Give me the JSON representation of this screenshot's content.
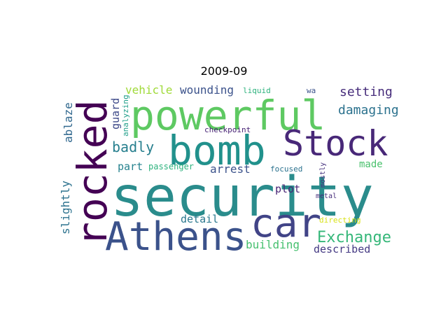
{
  "title": "2009-09",
  "words": [
    {
      "text": "security",
      "color": "#2a8c8c",
      "rotate": false
    },
    {
      "text": "powerful",
      "color": "#5ec962",
      "rotate": false
    },
    {
      "text": "bomb",
      "color": "#21918c",
      "rotate": false
    },
    {
      "text": "rocked",
      "color": "#440154",
      "rotate": true
    },
    {
      "text": "Athens",
      "color": "#3b528b",
      "rotate": false
    },
    {
      "text": "car",
      "color": "#414487",
      "rotate": false
    },
    {
      "text": "Stock",
      "color": "#482878",
      "rotate": false
    },
    {
      "text": "Exchange",
      "color": "#35b779",
      "rotate": false
    },
    {
      "text": "damaging",
      "color": "#2c728e",
      "rotate": false
    },
    {
      "text": "setting",
      "color": "#472d7b",
      "rotate": false
    },
    {
      "text": "badly",
      "color": "#277f8e",
      "rotate": false
    },
    {
      "text": "vehicle",
      "color": "#a0da39",
      "rotate": false
    },
    {
      "text": "wounding",
      "color": "#3b528b",
      "rotate": false
    },
    {
      "text": "guard",
      "color": "#3e4a89",
      "rotate": true
    },
    {
      "text": "ablaze",
      "color": "#31688e",
      "rotate": true
    },
    {
      "text": "slightly",
      "color": "#2c728e",
      "rotate": true
    },
    {
      "text": "part",
      "color": "#26828e",
      "rotate": false
    },
    {
      "text": "passenger",
      "color": "#2db27d",
      "rotate": false
    },
    {
      "text": "arrest",
      "color": "#3b528b",
      "rotate": false
    },
    {
      "text": "made",
      "color": "#4ac16d",
      "rotate": false
    },
    {
      "text": "plot",
      "color": "#482475",
      "rotate": false
    },
    {
      "text": "detail",
      "color": "#2a788e",
      "rotate": false
    },
    {
      "text": "building",
      "color": "#46c06f",
      "rotate": false
    },
    {
      "text": "described",
      "color": "#443983",
      "rotate": false
    },
    {
      "text": "liquid",
      "color": "#2db27d",
      "rotate": false
    },
    {
      "text": "wa",
      "color": "#3b528b",
      "rotate": false
    },
    {
      "text": "checkpoint",
      "color": "#482475",
      "rotate": false
    },
    {
      "text": "analyzing",
      "color": "#1f9e89",
      "rotate": true
    },
    {
      "text": "focused",
      "color": "#2c728e",
      "rotate": false
    },
    {
      "text": "mostly",
      "color": "#46327e",
      "rotate": true
    },
    {
      "text": "metal",
      "color": "#472d7b",
      "rotate": false
    },
    {
      "text": "directing",
      "color": "#d8e219",
      "rotate": false
    }
  ]
}
